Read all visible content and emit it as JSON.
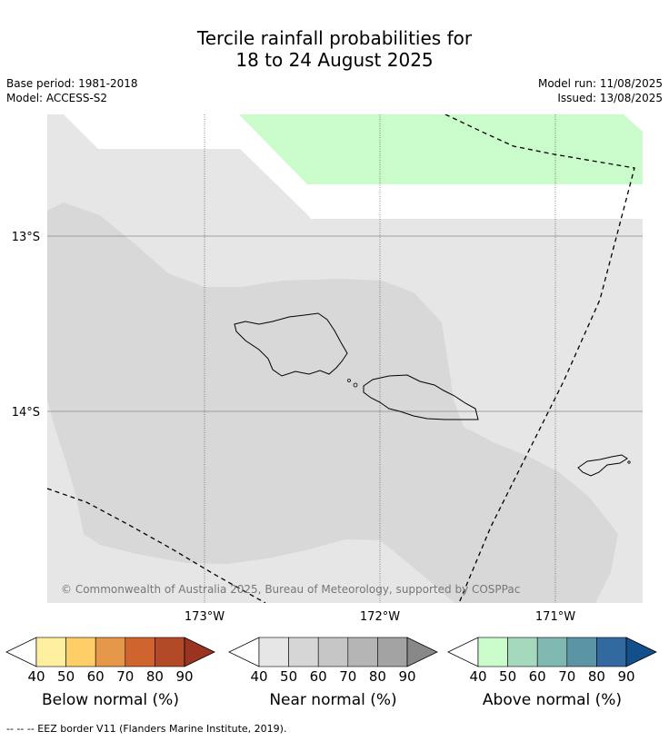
{
  "title_line1": "Tercile rainfall probabilities for",
  "title_line2": "18 to 24 August 2025",
  "left_meta": {
    "base_period": "Base period: 1981-2018",
    "model": "Model: ACCESS-S2"
  },
  "right_meta": {
    "model_run": "Model run: 11/08/2025",
    "issued": "Issued: 13/08/2025"
  },
  "map": {
    "lat_labels": [
      "13°S",
      "14°S"
    ],
    "lon_labels": [
      "173°W",
      "172°W",
      "171°W"
    ],
    "copyright": "© Commonwealth of Australia 2025, Bureau of Meteorology, supported by COSPPac",
    "background_color": "#e6e6e6",
    "near_normal_color": "#d8d8d8",
    "above_normal_color": "#c9fcca"
  },
  "colorbars": [
    {
      "name": "below",
      "label": "Below normal (%)",
      "ticks": [
        "40",
        "50",
        "60",
        "70",
        "80",
        "90"
      ],
      "colors": [
        "#fff0a0",
        "#fecf66",
        "#e5984a",
        "#d0642f",
        "#b34a27",
        "#9a3420"
      ]
    },
    {
      "name": "near",
      "label": "Near normal (%)",
      "ticks": [
        "40",
        "50",
        "60",
        "70",
        "80",
        "90"
      ],
      "colors": [
        "#e6e6e6",
        "#d6d6d6",
        "#c6c6c6",
        "#b5b5b5",
        "#a3a3a3",
        "#888888"
      ]
    },
    {
      "name": "above",
      "label": "Above normal (%)",
      "ticks": [
        "40",
        "50",
        "60",
        "70",
        "80",
        "90"
      ],
      "colors": [
        "#c9fcca",
        "#a5d9be",
        "#80b8b2",
        "#5b94a5",
        "#326aa0",
        "#134f8a"
      ]
    }
  ],
  "footer": "--  --  -- EEZ border V11 (Flanders Marine Institute, 2019)."
}
